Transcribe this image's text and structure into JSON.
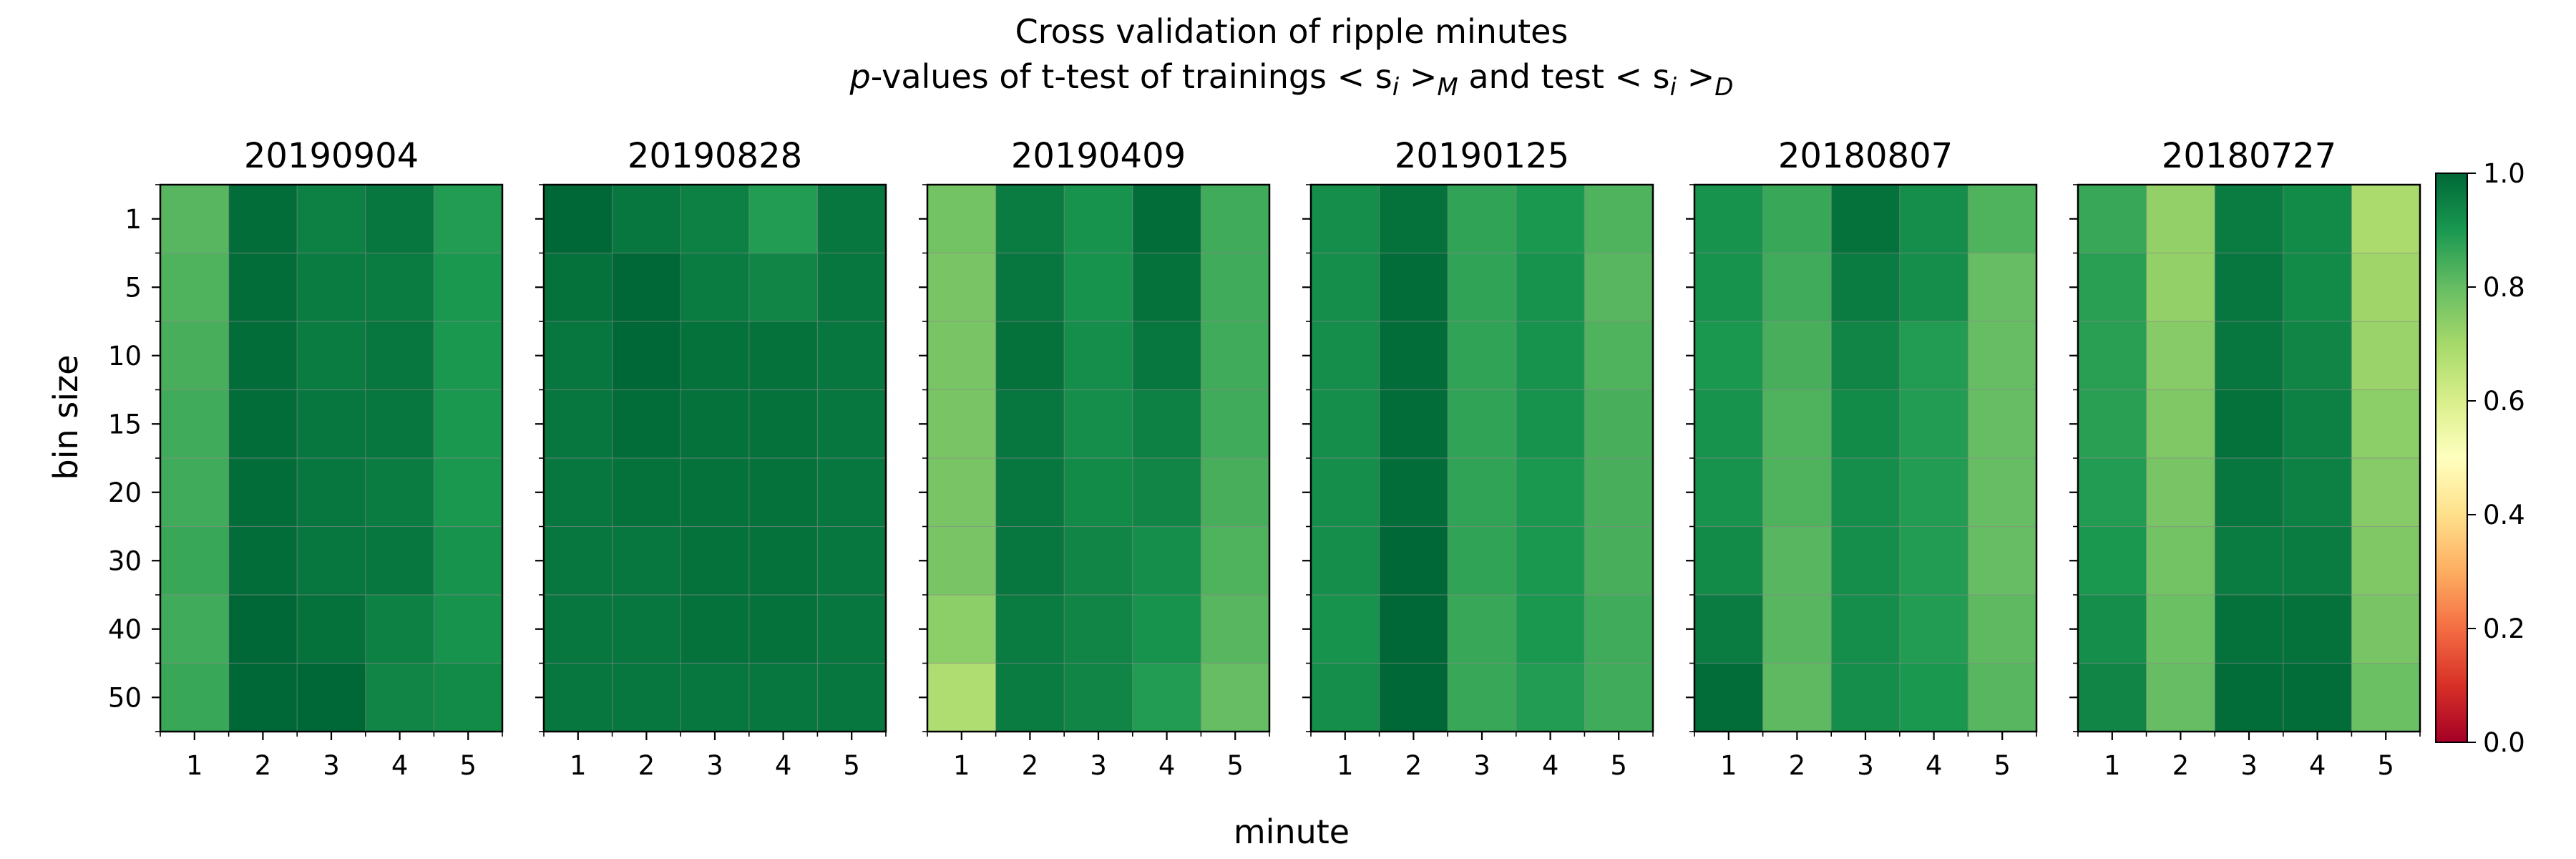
{
  "chart_data": {
    "type": "heatmap",
    "title": "Cross validation of ripple minutes",
    "subtitle": {
      "prefix": "p",
      "text": "-values of t-test of trainings ",
      "training_term": {
        "open": "< s",
        "sub_i": "i",
        "close": " >",
        "sub": "M"
      },
      "joiner": " and test ",
      "test_term": {
        "open": "< s",
        "sub_i": "i",
        "close": " >",
        "sub": "D"
      }
    },
    "xlabel": "minute",
    "ylabel": "bin size",
    "x_categories": [
      "1",
      "2",
      "3",
      "4",
      "5"
    ],
    "y_categories": [
      "1",
      "5",
      "10",
      "15",
      "20",
      "30",
      "40",
      "50"
    ],
    "colormap": "RdYlGn",
    "vmin": 0.0,
    "vmax": 1.0,
    "colorbar_ticks": [
      "0.0",
      "0.2",
      "0.4",
      "0.6",
      "0.8",
      "1.0"
    ],
    "panels": [
      {
        "title": "20190904",
        "values": [
          [
            0.82,
            0.99,
            0.95,
            0.97,
            0.89
          ],
          [
            0.83,
            0.99,
            0.96,
            0.96,
            0.9
          ],
          [
            0.84,
            0.99,
            0.96,
            0.97,
            0.9
          ],
          [
            0.85,
            0.99,
            0.97,
            0.97,
            0.9
          ],
          [
            0.85,
            0.99,
            0.97,
            0.96,
            0.9
          ],
          [
            0.86,
            0.99,
            0.97,
            0.97,
            0.91
          ],
          [
            0.85,
            1.0,
            0.98,
            0.95,
            0.91
          ],
          [
            0.86,
            1.0,
            1.0,
            0.94,
            0.93
          ]
        ]
      },
      {
        "title": "20190828",
        "values": [
          [
            1.0,
            0.97,
            0.95,
            0.89,
            0.97
          ],
          [
            0.98,
            1.0,
            0.96,
            0.94,
            0.97
          ],
          [
            0.97,
            1.0,
            0.98,
            0.98,
            0.97
          ],
          [
            0.97,
            0.99,
            0.98,
            0.98,
            0.97
          ],
          [
            0.97,
            0.98,
            0.98,
            0.98,
            0.97
          ],
          [
            0.97,
            0.97,
            0.98,
            0.98,
            0.97
          ],
          [
            0.97,
            0.97,
            0.98,
            0.98,
            0.97
          ],
          [
            0.97,
            0.97,
            0.97,
            0.97,
            0.97
          ]
        ]
      },
      {
        "title": "20190409",
        "values": [
          [
            0.78,
            0.96,
            0.91,
            0.99,
            0.85
          ],
          [
            0.77,
            0.97,
            0.91,
            0.98,
            0.85
          ],
          [
            0.77,
            0.98,
            0.92,
            0.97,
            0.85
          ],
          [
            0.77,
            0.97,
            0.92,
            0.95,
            0.85
          ],
          [
            0.77,
            0.97,
            0.93,
            0.94,
            0.84
          ],
          [
            0.77,
            0.97,
            0.94,
            0.92,
            0.83
          ],
          [
            0.74,
            0.96,
            0.94,
            0.91,
            0.82
          ],
          [
            0.68,
            0.96,
            0.94,
            0.89,
            0.8
          ]
        ]
      },
      {
        "title": "20190125",
        "values": [
          [
            0.92,
            0.98,
            0.87,
            0.9,
            0.83
          ],
          [
            0.92,
            0.99,
            0.87,
            0.91,
            0.82
          ],
          [
            0.92,
            0.99,
            0.87,
            0.91,
            0.83
          ],
          [
            0.92,
            0.99,
            0.87,
            0.91,
            0.84
          ],
          [
            0.92,
            0.99,
            0.87,
            0.9,
            0.84
          ],
          [
            0.92,
            1.0,
            0.87,
            0.9,
            0.84
          ],
          [
            0.91,
            1.0,
            0.86,
            0.9,
            0.85
          ],
          [
            0.92,
            1.0,
            0.86,
            0.89,
            0.85
          ]
        ]
      },
      {
        "title": "20180807",
        "values": [
          [
            0.91,
            0.86,
            0.98,
            0.92,
            0.83
          ],
          [
            0.91,
            0.85,
            0.96,
            0.92,
            0.8
          ],
          [
            0.9,
            0.84,
            0.94,
            0.89,
            0.8
          ],
          [
            0.91,
            0.83,
            0.93,
            0.89,
            0.8
          ],
          [
            0.91,
            0.83,
            0.92,
            0.89,
            0.8
          ],
          [
            0.93,
            0.82,
            0.92,
            0.89,
            0.8
          ],
          [
            0.96,
            0.82,
            0.92,
            0.89,
            0.81
          ],
          [
            0.99,
            0.81,
            0.92,
            0.9,
            0.82
          ]
        ]
      },
      {
        "title": "20180727",
        "values": [
          [
            0.86,
            0.73,
            0.96,
            0.93,
            0.69
          ],
          [
            0.88,
            0.73,
            0.97,
            0.93,
            0.71
          ],
          [
            0.88,
            0.75,
            0.97,
            0.94,
            0.72
          ],
          [
            0.88,
            0.76,
            0.98,
            0.95,
            0.74
          ],
          [
            0.89,
            0.77,
            0.97,
            0.95,
            0.75
          ],
          [
            0.9,
            0.78,
            0.96,
            0.96,
            0.76
          ],
          [
            0.92,
            0.79,
            0.98,
            0.98,
            0.77
          ],
          [
            0.94,
            0.8,
            0.99,
            0.99,
            0.79
          ]
        ]
      }
    ]
  }
}
